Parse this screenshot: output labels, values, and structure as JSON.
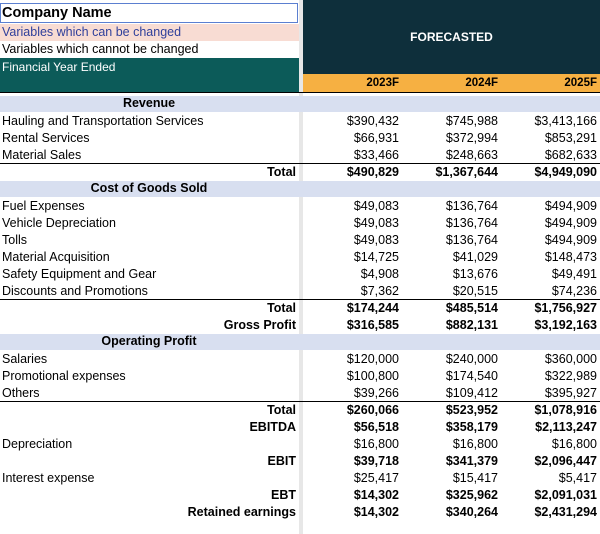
{
  "header": {
    "company_name": "Company Name",
    "changeable_label": "Variables which can be changed",
    "fixed_label": "Variables which cannot be changed",
    "fy_label": "Financial Year Ended",
    "forecasted_label": "FORECASTED",
    "years": [
      "2023F",
      "2024F",
      "2025F"
    ]
  },
  "colors": {
    "navy": "#0e2f3b",
    "teal": "#0c5b59",
    "orange": "#f6b042",
    "peach": "#f8dcd3",
    "lavender": "#d8dff0",
    "gutter": "#e7e7e7"
  },
  "revenue": {
    "section": "Revenue",
    "rows": [
      {
        "label": "Hauling and Transportation Services",
        "values": [
          "$390,432",
          "$745,988",
          "$3,413,166"
        ]
      },
      {
        "label": "Rental Services",
        "values": [
          "$66,931",
          "$372,994",
          "$853,291"
        ]
      },
      {
        "label": "Material Sales",
        "values": [
          "$33,466",
          "$248,663",
          "$682,633"
        ]
      }
    ],
    "total": {
      "label": "Total",
      "values": [
        "$490,829",
        "$1,367,644",
        "$4,949,090"
      ]
    }
  },
  "cogs": {
    "section": "Cost of Goods Sold",
    "rows": [
      {
        "label": "Fuel Expenses",
        "values": [
          "$49,083",
          "$136,764",
          "$494,909"
        ]
      },
      {
        "label": "Vehicle Depreciation",
        "values": [
          "$49,083",
          "$136,764",
          "$494,909"
        ]
      },
      {
        "label": "Tolls",
        "values": [
          "$49,083",
          "$136,764",
          "$494,909"
        ]
      },
      {
        "label": "Material Acquisition",
        "values": [
          "$14,725",
          "$41,029",
          "$148,473"
        ]
      },
      {
        "label": "Safety Equipment and Gear",
        "values": [
          "$4,908",
          "$13,676",
          "$49,491"
        ]
      },
      {
        "label": "Discounts and Promotions",
        "values": [
          "$7,362",
          "$20,515",
          "$74,236"
        ]
      }
    ],
    "total": {
      "label": "Total",
      "values": [
        "$174,244",
        "$485,514",
        "$1,756,927"
      ]
    },
    "gross_profit": {
      "label": "Gross Profit",
      "values": [
        "$316,585",
        "$882,131",
        "$3,192,163"
      ]
    }
  },
  "operating": {
    "section": "Operating Profit",
    "rows": [
      {
        "label": "Salaries",
        "values": [
          "$120,000",
          "$240,000",
          "$360,000"
        ]
      },
      {
        "label": "Promotional expenses",
        "values": [
          "$100,800",
          "$174,540",
          "$322,989"
        ]
      },
      {
        "label": "Others",
        "values": [
          "$39,266",
          "$109,412",
          "$395,927"
        ]
      }
    ],
    "total": {
      "label": "Total",
      "values": [
        "$260,066",
        "$523,952",
        "$1,078,916"
      ]
    },
    "ebitda": {
      "label": "EBITDA",
      "values": [
        "$56,518",
        "$358,179",
        "$2,113,247"
      ]
    },
    "depreciation": {
      "label": "Depreciation",
      "values": [
        "$16,800",
        "$16,800",
        "$16,800"
      ]
    },
    "ebit": {
      "label": "EBIT",
      "values": [
        "$39,718",
        "$341,379",
        "$2,096,447"
      ]
    },
    "interest": {
      "label": "Interest expense",
      "values": [
        "$25,417",
        "$15,417",
        "$5,417"
      ]
    },
    "ebt": {
      "label": "EBT",
      "values": [
        "$14,302",
        "$325,962",
        "$2,091,031"
      ]
    },
    "retained": {
      "label": "Retained earnings",
      "values": [
        "$14,302",
        "$340,264",
        "$2,431,294"
      ]
    }
  }
}
